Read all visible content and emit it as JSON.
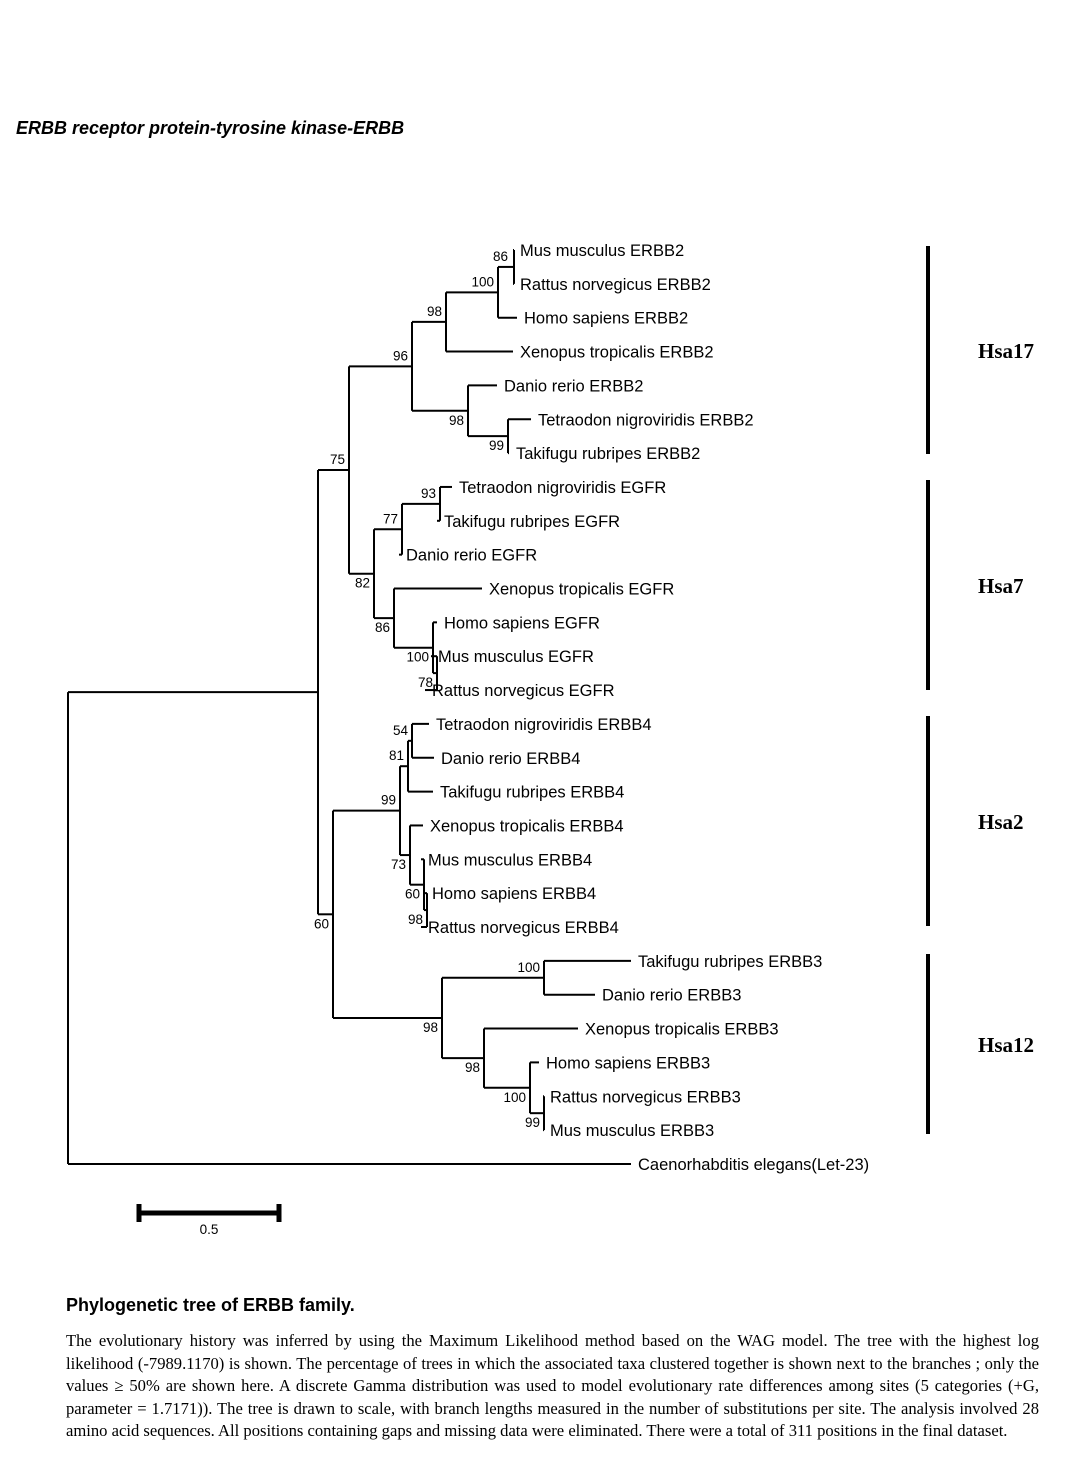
{
  "header": {
    "title": "ERBB receptor protein-tyrosine kinase-ERBB"
  },
  "tree": {
    "leaves": [
      "Mus musculus ERBB2",
      "Rattus norvegicus ERBB2",
      "Homo sapiens ERBB2",
      "Xenopus tropicalis ERBB2",
      "Danio rerio ERBB2",
      "Tetraodon nigroviridis ERBB2",
      "Takifugu rubripes ERBB2",
      "Tetraodon nigroviridis EGFR",
      "Takifugu rubripes EGFR",
      "Danio rerio EGFR",
      "Xenopus tropicalis EGFR",
      "Homo sapiens EGFR",
      "Mus musculus EGFR",
      "Rattus norvegicus EGFR",
      "Tetraodon nigroviridis ERBB4",
      "Danio rerio ERBB4",
      "Takifugu rubripes ERBB4",
      "Xenopus tropicalis ERBB4",
      "Mus musculus ERBB4",
      "Homo sapiens ERBB4",
      "Rattus norvegicus ERBB4",
      "Takifugu rubripes ERBB3",
      "Danio rerio ERBB3",
      "Xenopus tropicalis ERBB3",
      "Homo sapiens ERBB3",
      "Rattus norvegicus ERBB3",
      "Mus musculus ERBB3",
      "Caenorhabditis elegans(Let-23)"
    ],
    "bootstrap": [
      "86",
      "100",
      "98",
      "96",
      "98",
      "99",
      "75",
      "93",
      "77",
      "82",
      "86",
      "100",
      "78",
      "54",
      "81",
      "99",
      "73",
      "98",
      "60",
      "60",
      "100",
      "98",
      "98",
      "100",
      "99"
    ],
    "groups": [
      "Hsa17",
      "Hsa7",
      "Hsa2",
      "Hsa12"
    ],
    "scale": {
      "label": "0.5"
    }
  },
  "figure": {
    "title": "Phylogenetic tree of ERBB family.",
    "caption": "The evolutionary history was inferred by using the Maximum Likelihood method based on the WAG model. The tree with the highest log likelihood (-7989.1170) is shown. The percentage of trees in which the associated taxa clustered together is shown next to the branches ; only the values ≥ 50% are shown here. A discrete Gamma distribution was used to model evolutionary rate differences among sites (5 categories (+G, parameter = 1.7171)). The tree is drawn to scale, with branch lengths measured in the number of substitutions per site. The analysis involved 28 amino acid sequences. All positions containing gaps and missing data were eliminated. There were a total of 311 positions in the final dataset."
  }
}
